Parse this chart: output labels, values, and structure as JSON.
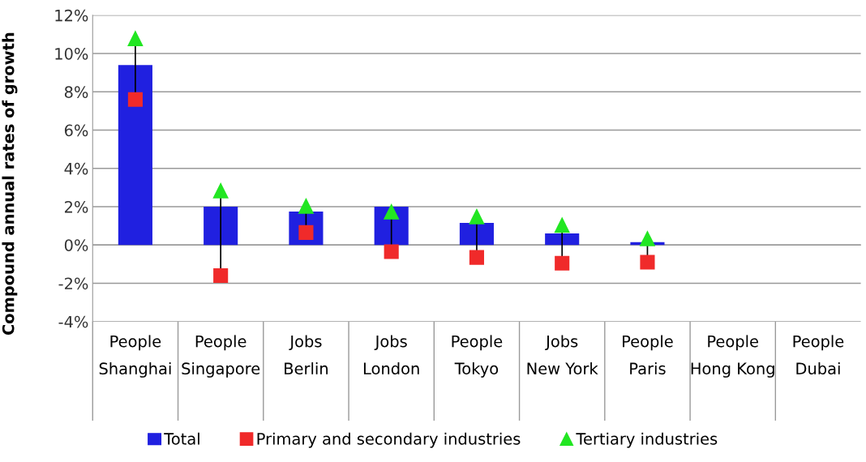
{
  "chart_data": {
    "type": "bar",
    "ylabel": "Compound annual rates of growth",
    "categories": [
      "People\nShanghai",
      "People\nSingapore",
      "Jobs\nBerlin",
      "Jobs\nLondon",
      "People\nTokyo",
      "Jobs\nNew York",
      "People\nParis",
      "People\nHong Kong",
      "People\nDubai"
    ],
    "series": [
      {
        "name": "Total",
        "type": "bar",
        "color": "#2020e0",
        "values": [
          9.4,
          2.0,
          1.75,
          2.0,
          1.15,
          0.6,
          0.15,
          null,
          null
        ]
      },
      {
        "name": "Primary and secondary industries",
        "type": "scatter",
        "marker": "square",
        "color": "#f02a2a",
        "values": [
          7.6,
          -1.6,
          0.65,
          -0.35,
          -0.65,
          -0.95,
          -0.9,
          null,
          null
        ]
      },
      {
        "name": "Tertiary industries",
        "type": "scatter",
        "marker": "triangle",
        "color": "#22e622",
        "values": [
          10.8,
          2.85,
          2.05,
          1.75,
          1.5,
          1.05,
          0.35,
          null,
          null
        ]
      }
    ],
    "ylim": [
      -4,
      12
    ],
    "yticks": [
      {
        "value": -4,
        "label": "-4%"
      },
      {
        "value": -2,
        "label": "-2%"
      },
      {
        "value": 0,
        "label": "0%"
      },
      {
        "value": 2,
        "label": "2%"
      },
      {
        "value": 4,
        "label": "4%"
      },
      {
        "value": 6,
        "label": "6%"
      },
      {
        "value": 8,
        "label": "8%"
      },
      {
        "value": 10,
        "label": "10%"
      },
      {
        "value": 12,
        "label": "12%"
      }
    ],
    "grid": "y",
    "legend": "bottom"
  }
}
